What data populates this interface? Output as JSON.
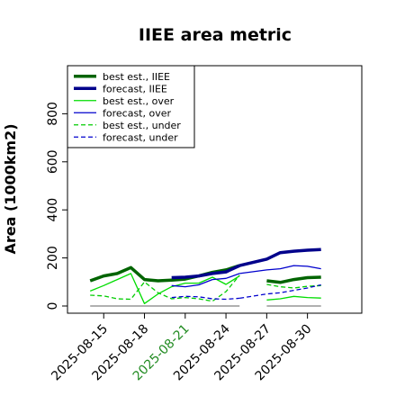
{
  "chart_data": {
    "type": "line",
    "title": "IIEE area metric",
    "xlabel": "",
    "ylabel": "Area (1000km2)",
    "ylim": [
      -30,
      1000
    ],
    "xlim": [
      -5,
      60
    ],
    "grid": false,
    "legend_position": "top-left",
    "x_tick_labels": [
      {
        "label": "2025-08-15",
        "x": 3,
        "color": "#000000"
      },
      {
        "label": "2025-08-18",
        "x": 12,
        "color": "#000000"
      },
      {
        "label": "2025-08-21",
        "x": 21,
        "color": "#228B22"
      },
      {
        "label": "2025-08-24",
        "x": 30,
        "color": "#000000"
      },
      {
        "label": "2025-08-27",
        "x": 39,
        "color": "#000000"
      },
      {
        "label": "2025-08-30",
        "x": 48,
        "color": "#000000"
      }
    ],
    "y_ticks": [
      0,
      200,
      400,
      600,
      800
    ],
    "series": [
      {
        "name": "best est., IIEE",
        "color": "#006400",
        "width": 3.5,
        "dash": "",
        "x": [
          0,
          3,
          6,
          9,
          12,
          15,
          18,
          21,
          24,
          27,
          30,
          33
        ],
        "y": [
          105,
          125,
          135,
          160,
          110,
          105,
          108,
          112,
          125,
          140,
          150,
          168
        ]
      },
      {
        "name": "best est., IIEE",
        "color": "#006400",
        "width": 3.5,
        "dash": "",
        "x": [
          39,
          42,
          45,
          48,
          51
        ],
        "y": [
          105,
          98,
          110,
          118,
          120
        ]
      },
      {
        "name": "forecast, IIEE",
        "color": "#00008B",
        "width": 3.5,
        "dash": "",
        "x": [
          18,
          21,
          24,
          27,
          30,
          33
        ],
        "y": [
          118,
          120,
          125,
          135,
          142,
          168
        ]
      },
      {
        "name": "forecast, IIEE",
        "color": "#00008B",
        "width": 3.5,
        "dash": "",
        "x": [
          33,
          39,
          42,
          45,
          48,
          51
        ],
        "y": [
          168,
          195,
          222,
          228,
          232,
          235
        ]
      },
      {
        "name": "best est., over",
        "color": "#00DD00",
        "width": 1.3,
        "dash": "",
        "x": [
          0,
          3,
          6,
          9,
          12,
          15,
          18,
          21,
          24,
          27,
          30,
          33
        ],
        "y": [
          62,
          85,
          110,
          135,
          10,
          50,
          80,
          95,
          95,
          120,
          90,
          125
        ]
      },
      {
        "name": "best est., over",
        "color": "#00DD00",
        "width": 1.3,
        "dash": "",
        "x": [
          39,
          42,
          45,
          48,
          51
        ],
        "y": [
          25,
          30,
          40,
          35,
          33
        ]
      },
      {
        "name": "forecast, over",
        "color": "#0000CD",
        "width": 1.3,
        "dash": "",
        "x": [
          18,
          21,
          24,
          27,
          30,
          33
        ],
        "y": [
          85,
          80,
          88,
          110,
          115,
          135
        ]
      },
      {
        "name": "forecast, over",
        "color": "#0000CD",
        "width": 1.3,
        "dash": "",
        "x": [
          33,
          39,
          42,
          45,
          48,
          51
        ],
        "y": [
          135,
          150,
          155,
          168,
          165,
          155
        ]
      },
      {
        "name": "best est., under",
        "color": "#00CC00",
        "width": 1.3,
        "dash": "5,3",
        "x": [
          0,
          3,
          6,
          9,
          12,
          15,
          18,
          21,
          24,
          27,
          30,
          33
        ],
        "y": [
          45,
          42,
          30,
          28,
          100,
          55,
          30,
          35,
          30,
          20,
          60,
          128
        ]
      },
      {
        "name": "best est., under",
        "color": "#00CC00",
        "width": 1.3,
        "dash": "5,3",
        "x": [
          39,
          42,
          45,
          48,
          51
        ],
        "y": [
          90,
          80,
          75,
          82,
          85
        ]
      },
      {
        "name": "forecast, under",
        "color": "#0000CD",
        "width": 1.3,
        "dash": "5,3",
        "x": [
          18,
          21,
          24,
          27,
          30,
          33
        ],
        "y": [
          35,
          40,
          38,
          30,
          28,
          32
        ]
      },
      {
        "name": "forecast, under",
        "color": "#0000CD",
        "width": 1.3,
        "dash": "5,3",
        "x": [
          33,
          39,
          42,
          45,
          48,
          51
        ],
        "y": [
          32,
          50,
          55,
          65,
          75,
          88
        ]
      },
      {
        "name": "",
        "color": "#808080",
        "width": 1.3,
        "dash": "",
        "x": [
          0,
          33
        ],
        "y": [
          0,
          0
        ]
      },
      {
        "name": "",
        "color": "#808080",
        "width": 1.3,
        "dash": "",
        "x": [
          39,
          51
        ],
        "y": [
          0,
          0
        ]
      }
    ],
    "legend": [
      {
        "label": "best est., IIEE",
        "color": "#006400",
        "width": 3.5,
        "dash": ""
      },
      {
        "label": "forecast, IIEE",
        "color": "#00008B",
        "width": 3.5,
        "dash": ""
      },
      {
        "label": "best est., over",
        "color": "#00DD00",
        "width": 1.3,
        "dash": ""
      },
      {
        "label": "forecast, over",
        "color": "#0000CD",
        "width": 1.3,
        "dash": ""
      },
      {
        "label": "best est., under",
        "color": "#00CC00",
        "width": 1.3,
        "dash": "5,3"
      },
      {
        "label": "forecast, under",
        "color": "#0000CD",
        "width": 1.3,
        "dash": "5,3"
      }
    ]
  }
}
